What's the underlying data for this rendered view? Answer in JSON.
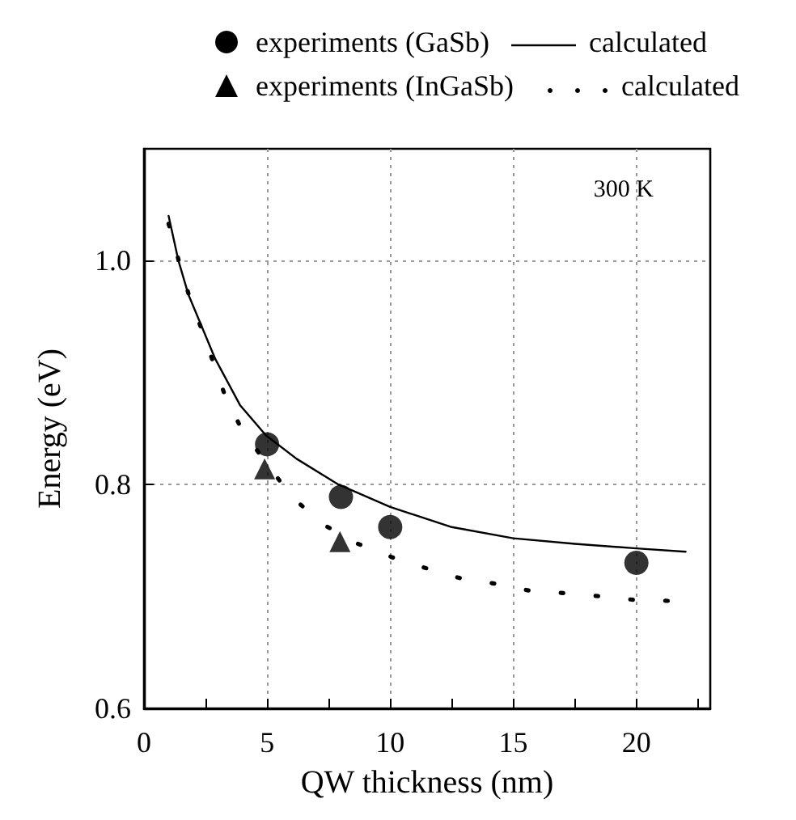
{
  "chart_data": {
    "type": "line",
    "xlabel": "QW thickness (nm)",
    "ylabel": "Energy (eV)",
    "annotations": [
      "300 K"
    ],
    "xlim": [
      0,
      23
    ],
    "ylim": [
      0.6,
      1.1
    ],
    "xticks": [
      0,
      {
        "value": 2.5,
        "label": null
      },
      5,
      {
        "value": 7.5,
        "label": null
      },
      10,
      {
        "value": 12.5,
        "label": null
      },
      15,
      {
        "value": 17.5,
        "label": null
      },
      20,
      {
        "value": 22.5,
        "label": null
      }
    ],
    "yticks": [
      0.6,
      0.8,
      {
        "value": 1.0,
        "label": "1.0"
      }
    ],
    "grid": true,
    "legend": "top",
    "series": [
      {
        "name": "experiments (GaSb)",
        "type": "scatter",
        "marker": "circle",
        "color": "#000000",
        "x": [
          5,
          8,
          10,
          20
        ],
        "values": [
          0.836,
          0.789,
          0.762,
          0.73
        ]
      },
      {
        "name": "calculated",
        "marker": "none",
        "line_style": "solid",
        "color": "#000000",
        "x": [
          1.0,
          1.4,
          1.8,
          2.9,
          3.9,
          4.95,
          6.2,
          7.9,
          10,
          12.5,
          15,
          17.5,
          20,
          22
        ],
        "values": [
          1.04,
          1.0,
          0.97,
          0.912,
          0.871,
          0.844,
          0.823,
          0.8,
          0.78,
          0.762,
          0.752,
          0.747,
          0.743,
          0.74
        ]
      },
      {
        "name": "experiments (InGaSb)",
        "type": "scatter",
        "marker": "triangle",
        "color": "#000000",
        "x": [
          4.9,
          7.96
        ],
        "values": [
          0.814,
          0.749
        ]
      },
      {
        "name": "calculated",
        "marker": "none",
        "line_style": "dotted",
        "color": "#000000",
        "x": [
          1.0,
          1.4,
          1.8,
          2.3,
          2.8,
          3.3,
          4.0,
          6.0,
          7.3,
          8.7,
          10.2,
          11.5,
          12.9,
          14.4,
          15.7,
          17.1,
          18.6,
          19.9,
          21.4
        ],
        "values": [
          1.033,
          1.001,
          0.971,
          0.941,
          0.91,
          0.879,
          0.848,
          0.789,
          0.764,
          0.747,
          0.734,
          0.725,
          0.716,
          0.711,
          0.705,
          0.703,
          0.7,
          0.697,
          0.696
        ]
      }
    ]
  }
}
